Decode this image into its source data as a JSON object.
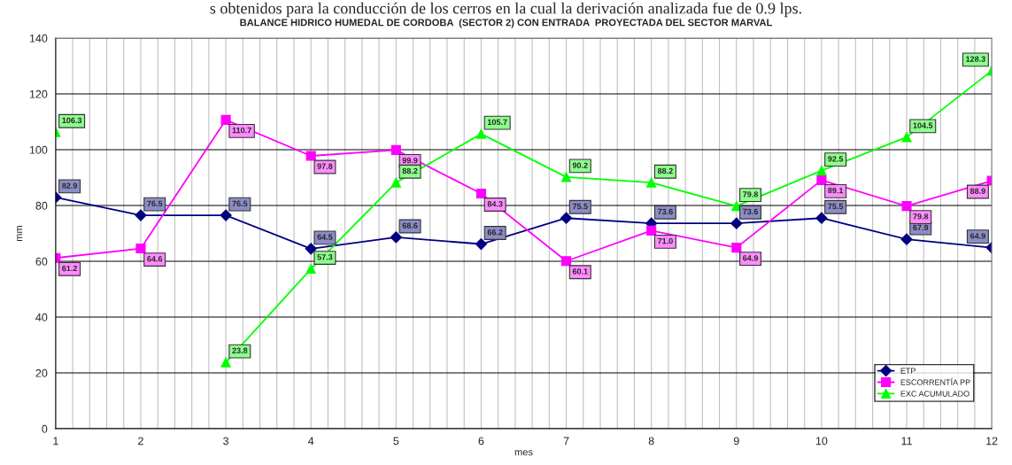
{
  "chart_data": {
    "type": "line",
    "title": "BALANCE HIDRICO HUMEDAL DE CORDOBA  (SECTOR 2) CON ENTRADA  PROYECTADA DEL SECTOR MARVAL",
    "annotations": [
      "s obtenidos para la conducción de los cerros en la cual la derivación analizada fue de 0.9 lps."
    ],
    "xlabel": "mes",
    "ylabel": "mm",
    "x": [
      1,
      2,
      3,
      4,
      5,
      6,
      7,
      8,
      9,
      10,
      11,
      12
    ],
    "xlim": [
      1,
      12
    ],
    "xticks": [
      1,
      2,
      3,
      4,
      5,
      6,
      7,
      8,
      9,
      10,
      11,
      12
    ],
    "ylim": [
      0,
      140
    ],
    "yticks": [
      0,
      20,
      40,
      60,
      80,
      100,
      120,
      140
    ],
    "grid": true,
    "legend": "bottom right",
    "line_style": "solid",
    "series": [
      {
        "name": "ETP",
        "color": "#000080",
        "marker": "diamond",
        "values": [
          82.9,
          76.5,
          76.5,
          64.5,
          68.6,
          66.2,
          75.5,
          73.6,
          73.6,
          75.5,
          67.9,
          64.9
        ],
        "value_labels": [
          "82.9",
          "76.5",
          "76.5",
          "64.5",
          "68.6",
          "66.2",
          "75.5",
          "73.6",
          "73.6",
          "75.5",
          "67.9",
          "64.9"
        ]
      },
      {
        "name": "ESCORRENTÍA PP",
        "color": "#ff00ff",
        "marker": "square",
        "values": [
          61.2,
          64.6,
          110.7,
          97.8,
          99.9,
          84.3,
          60.1,
          71.0,
          64.9,
          89.1,
          79.8,
          88.9
        ],
        "value_labels": [
          "61.2",
          "64.6",
          "110.7",
          "97.8",
          "99.9",
          "84.3",
          "60.1",
          "71.0",
          "64.9",
          "89.1",
          "79.8",
          "88.9"
        ]
      },
      {
        "name": "EXC ACUMULADO",
        "color": "#00ff00",
        "marker": "triangle",
        "values": [
          106.3,
          null,
          23.8,
          57.3,
          88.2,
          105.7,
          90.2,
          88.2,
          79.8,
          92.5,
          104.5,
          128.3
        ],
        "value_labels": [
          "106.3",
          null,
          "23.8",
          "57.3",
          "88.2",
          "105.7",
          "90.2",
          "88.2",
          "79.8",
          "92.5",
          "104.5",
          "128.3"
        ]
      }
    ]
  }
}
